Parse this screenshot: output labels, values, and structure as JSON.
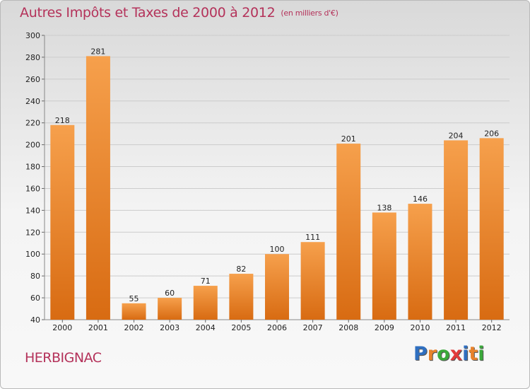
{
  "title": "Autres Impôts et Taxes de 2000 à 2012",
  "subtitle": "(en milliers d'€)",
  "commune": "HERBIGNAC",
  "logo": {
    "text": "Proxiti",
    "letter_colors": [
      "#2f6fc0",
      "#e8822a",
      "#3aa83a",
      "#e23a3a",
      "#2f6fc0",
      "#e8822a",
      "#3aa83a"
    ]
  },
  "colors": {
    "bar_light": "#f6a04c",
    "bar_dark": "#d86b12",
    "title": "#b4325a",
    "grid": "#cccccc"
  },
  "chart_data": {
    "type": "bar",
    "categories": [
      "2000",
      "2001",
      "2002",
      "2003",
      "2004",
      "2005",
      "2006",
      "2007",
      "2008",
      "2009",
      "2010",
      "2011",
      "2012"
    ],
    "values": [
      218,
      281,
      55,
      60,
      71,
      82,
      100,
      111,
      201,
      138,
      146,
      204,
      206
    ],
    "ylim": [
      40,
      300
    ],
    "yticks": [
      40,
      60,
      80,
      100,
      120,
      140,
      160,
      180,
      200,
      220,
      240,
      260,
      280,
      300
    ],
    "grid": true,
    "legend": "none"
  }
}
